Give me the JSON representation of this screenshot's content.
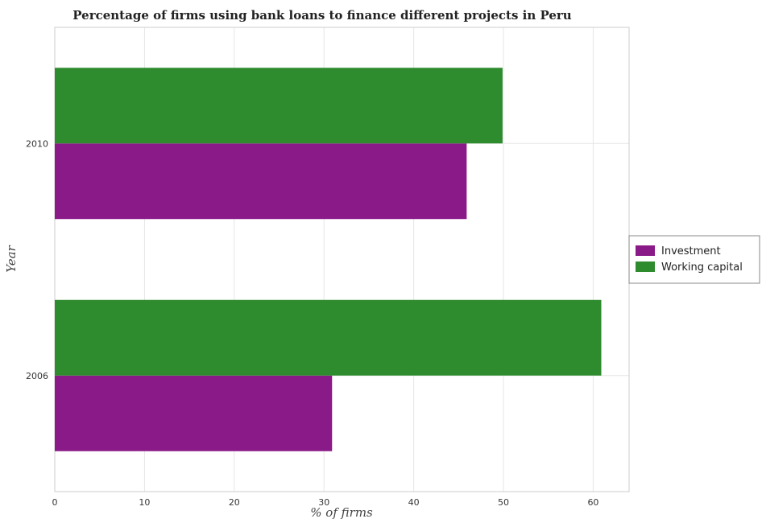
{
  "chart_data": {
    "type": "bar",
    "orientation": "horizontal",
    "title": "Percentage of firms using bank loans to finance different projects in Peru",
    "xlabel": "% of firms",
    "ylabel": "Year",
    "categories": [
      "2006",
      "2010"
    ],
    "series": [
      {
        "name": "Investment",
        "values": [
          30.9,
          45.9
        ],
        "color": "#8b1a89"
      },
      {
        "name": "Working capital",
        "values": [
          60.9,
          49.9
        ],
        "color": "#2e8b2e"
      }
    ],
    "xlim": [
      0,
      64
    ],
    "xticks": [
      0,
      10,
      20,
      30,
      40,
      50,
      60
    ],
    "grid": true,
    "legend_position": "right"
  }
}
